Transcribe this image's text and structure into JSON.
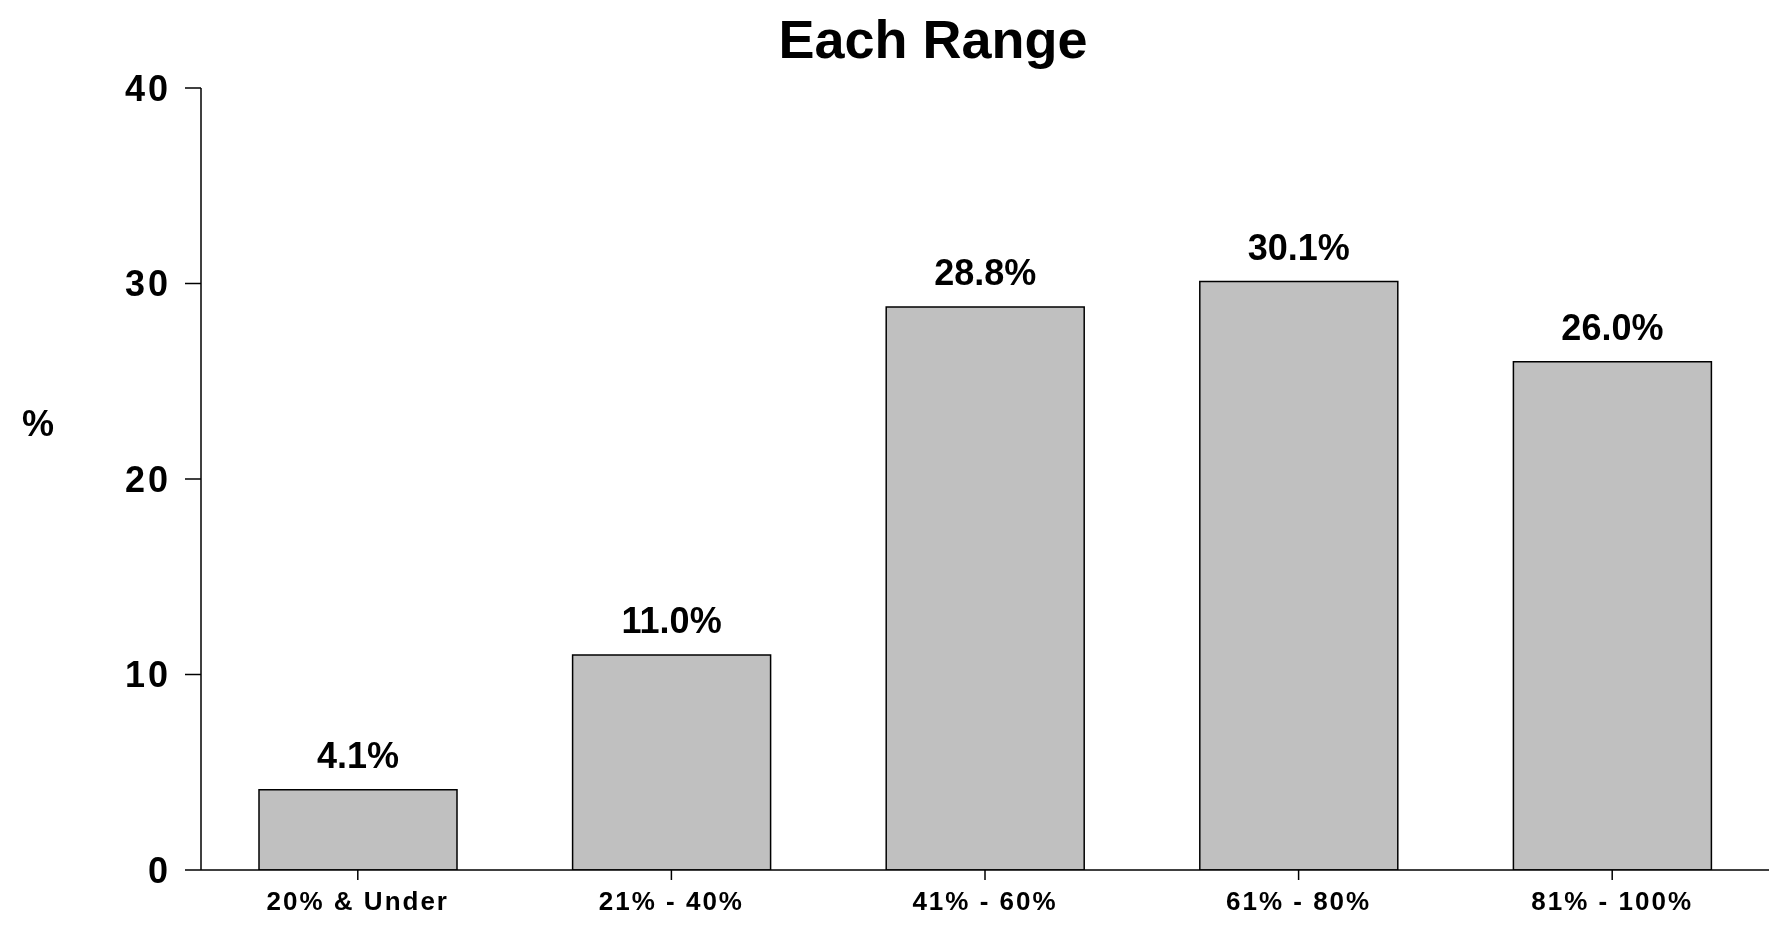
{
  "chart_data": {
    "type": "bar",
    "title": "Each Range",
    "ylabel": "%",
    "categories": [
      "20% & Under",
      "21% - 40%",
      "41% - 60%",
      "61% - 80%",
      "81% - 100%"
    ],
    "values": [
      4.1,
      11.0,
      28.8,
      30.1,
      26.0
    ],
    "value_labels": [
      "4.1%",
      "11.0%",
      "28.8%",
      "30.1%",
      "26.0%"
    ],
    "color": "#c0c0c0",
    "ylim": [
      0,
      40
    ],
    "yticks": [
      0,
      10,
      20,
      30,
      40
    ],
    "grid": false,
    "legend": false
  }
}
